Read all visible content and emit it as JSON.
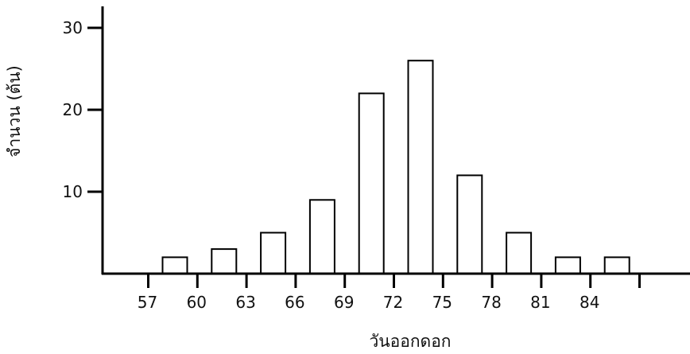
{
  "chart_data": {
    "type": "bar",
    "title": "",
    "xlabel": "วันออกดอก",
    "ylabel": "จำนวน (ต้น)",
    "ylim": [
      0,
      30
    ],
    "yticks": [
      10,
      20,
      30
    ],
    "xticks": [
      "57",
      "60",
      "63",
      "66",
      "69",
      "72",
      "75",
      "78",
      "81",
      "84"
    ],
    "grid": false,
    "legend": "none",
    "bar_fill": "#ffffff",
    "bar_stroke": "#000000",
    "bins": [
      {
        "from": 57,
        "to": 60,
        "value": 2
      },
      {
        "from": 60,
        "to": 63,
        "value": 3
      },
      {
        "from": 63,
        "to": 66,
        "value": 5
      },
      {
        "from": 66,
        "to": 69,
        "value": 9
      },
      {
        "from": 69,
        "to": 72,
        "value": 22
      },
      {
        "from": 72,
        "to": 75,
        "value": 26
      },
      {
        "from": 75,
        "to": 78,
        "value": 12
      },
      {
        "from": 78,
        "to": 81,
        "value": 5
      },
      {
        "from": 81,
        "to": 84,
        "value": 2
      },
      {
        "from": 84,
        "to": 87,
        "value": 2
      }
    ]
  }
}
